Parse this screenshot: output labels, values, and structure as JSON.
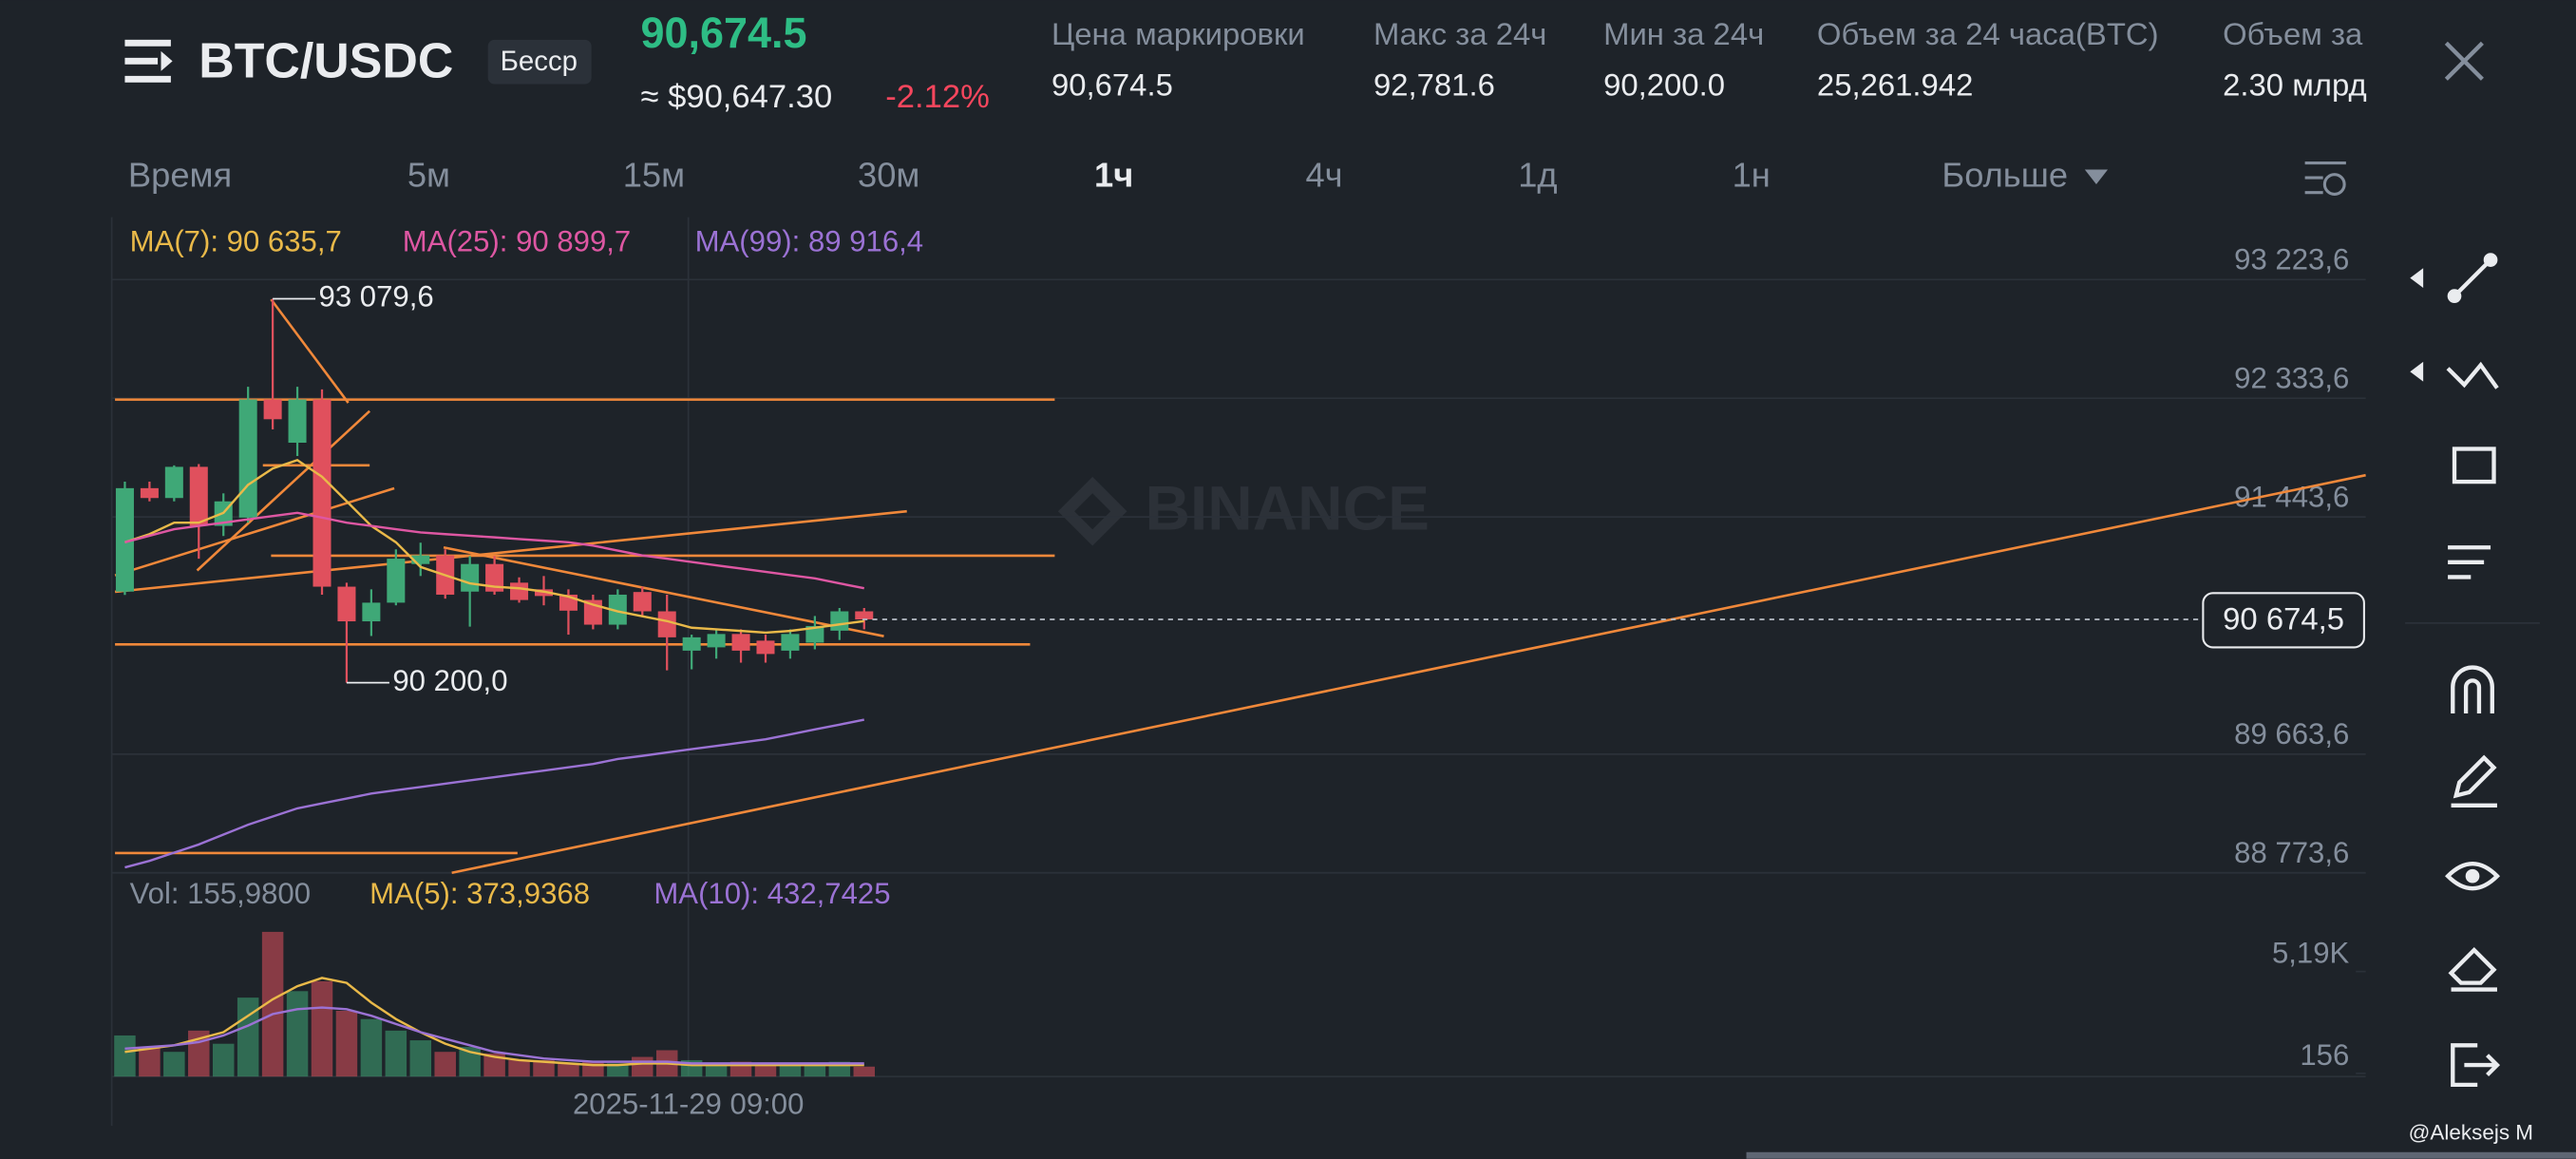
{
  "header": {
    "pair": "BTC/USDC",
    "badge": "Бесср",
    "last_price": "90,674.5",
    "usd_price": "≈ $90,647.30",
    "change": "-2.12%"
  },
  "stats": [
    {
      "label": "Цена маркировки",
      "value": "90,674.5"
    },
    {
      "label": "Макс за 24ч",
      "value": "92,781.6"
    },
    {
      "label": "Мин за 24ч",
      "value": "90,200.0"
    },
    {
      "label": "Объем за 24 часа(BTC)",
      "value": "25,261.942"
    },
    {
      "label": "Объем за",
      "value": "2.30 млрд"
    }
  ],
  "timeframes": {
    "items": [
      "Время",
      "5м",
      "15м",
      "30м",
      "1ч",
      "4ч",
      "1д",
      "1н",
      "Больше"
    ],
    "active_index": 4
  },
  "chart_data": {
    "type": "candlestick",
    "up_color": "#3fa877",
    "down_color": "#e0505d",
    "ylim": [
      88773.6,
      93691.7
    ],
    "yticks": [
      {
        "value": 93223.6,
        "label": "93 223,6"
      },
      {
        "value": 92333.6,
        "label": "92 333,6"
      },
      {
        "value": 91443.6,
        "label": "91 443,6"
      },
      {
        "value": 89663.6,
        "label": "89 663,6"
      },
      {
        "value": 88773.6,
        "label": "88 773,6"
      }
    ],
    "grid": true,
    "candles": {
      "open": [
        90883,
        91659,
        91585,
        91819,
        91376,
        91438,
        92324,
        92000,
        92324,
        90920,
        90660,
        90800,
        91090,
        91155,
        90883,
        91090,
        90950,
        90900,
        90860,
        90820,
        90635,
        90880,
        90735,
        90440,
        90465,
        90565,
        90515,
        90440,
        90500,
        90590,
        90735
      ],
      "high": [
        91708,
        91708,
        91830,
        91840,
        91620,
        92420,
        93079.6,
        92420,
        92400,
        90950,
        90900,
        91200,
        91250,
        91200,
        91150,
        91150,
        90990,
        91000,
        90900,
        90860,
        90900,
        90920,
        90860,
        90560,
        90600,
        90600,
        90560,
        90600,
        90700,
        90760,
        90760
      ],
      "low": [
        90858,
        91560,
        91560,
        91130,
        91300,
        91400,
        92100,
        91900,
        90860,
        90200,
        90550,
        90780,
        91000,
        90830,
        90620,
        90860,
        90800,
        90780,
        90560,
        90600,
        90600,
        90700,
        90292,
        90300,
        90380,
        90350,
        90350,
        90380,
        90450,
        90520,
        90600
      ],
      "close": [
        91659,
        91585,
        91819,
        91376,
        91560,
        92324,
        92176,
        92324,
        90920,
        90660,
        90800,
        91130,
        91155,
        90860,
        91090,
        90883,
        90820,
        90850,
        90740,
        90635,
        90860,
        90735,
        90540,
        90540,
        90565,
        90440,
        90415,
        90565,
        90625,
        90735,
        90674.5
      ]
    },
    "series": [
      {
        "name": "MA(7): 90 635,7",
        "color": "#e9b949",
        "values": [
          91253,
          91314,
          91400,
          91400,
          91474,
          91684,
          91807,
          91869,
          91745,
          91561,
          91376,
          91253,
          91068,
          91006,
          90945,
          90920,
          90908,
          90883,
          90846,
          90785,
          90735,
          90698,
          90662,
          90612,
          90600,
          90588,
          90575,
          90588,
          90612,
          90637,
          90662
        ]
      },
      {
        "name": "MA(25): 90 899,7",
        "color": "#de57a3",
        "values": [
          91253,
          91302,
          91351,
          91376,
          91400,
          91425,
          91450,
          91474,
          91438,
          91400,
          91376,
          91351,
          91327,
          91314,
          91302,
          91290,
          91277,
          91265,
          91253,
          91228,
          91191,
          91154,
          91130,
          91105,
          91080,
          91056,
          91031,
          91006,
          90982,
          90945,
          90908
        ]
      },
      {
        "name": "MA(99): 89 916,4",
        "color": "#9b72d4",
        "values": [
          88814,
          88863,
          88925,
          88986,
          89060,
          89134,
          89196,
          89257,
          89294,
          89331,
          89368,
          89393,
          89417,
          89442,
          89467,
          89491,
          89516,
          89540,
          89565,
          89590,
          89627,
          89651,
          89676,
          89701,
          89725,
          89750,
          89775,
          89812,
          89849,
          89885,
          89922
        ]
      }
    ],
    "high_label": {
      "value": 93079.6,
      "label": "93 079,6"
    },
    "low_label": {
      "value": 90200,
      "label": "90 200,0"
    },
    "current_price": {
      "value": 90674.5,
      "label": "90 674,5"
    },
    "x_label": "2025-11-29 09:00",
    "watermark": "BINANCE",
    "volume": {
      "label": "Vol: 155,9800",
      "values": [
        2030,
        1460,
        1220,
        2270,
        1620,
        3900,
        7150,
        4220,
        4710,
        3250,
        2840,
        2270,
        1790,
        1220,
        1460,
        1140,
        810,
        810,
        650,
        730,
        650,
        970,
        1300,
        810,
        650,
        730,
        570,
        650,
        650,
        730,
        490
      ],
      "ylim": [
        0,
        9744
      ],
      "yticks": [
        {
          "value": 5190,
          "label": "5,19K"
        },
        156
      ],
      "series": [
        {
          "name": "MA(5): 373,9368",
          "color": "#e9b949",
          "values": [
            1218,
            1380,
            1543,
            1868,
            2192,
            3004,
            3816,
            4466,
            4872,
            4628,
            3654,
            2842,
            2192,
            1624,
            1218,
            974,
            812,
            731,
            650,
            568,
            568,
            650,
            650,
            568,
            568,
            568,
            568,
            568,
            568,
            568,
            568
          ]
        },
        {
          "name": "MA(10): 432,7425",
          "color": "#9b72d4",
          "values": [
            1380,
            1462,
            1543,
            1705,
            2030,
            2517,
            3086,
            3329,
            3410,
            3329,
            3004,
            2598,
            2192,
            1868,
            1543,
            1218,
            1056,
            893,
            812,
            731,
            731,
            731,
            731,
            650,
            650,
            650,
            650,
            650,
            650,
            650,
            650
          ]
        }
      ]
    }
  },
  "footer": "@Aleksejs M"
}
